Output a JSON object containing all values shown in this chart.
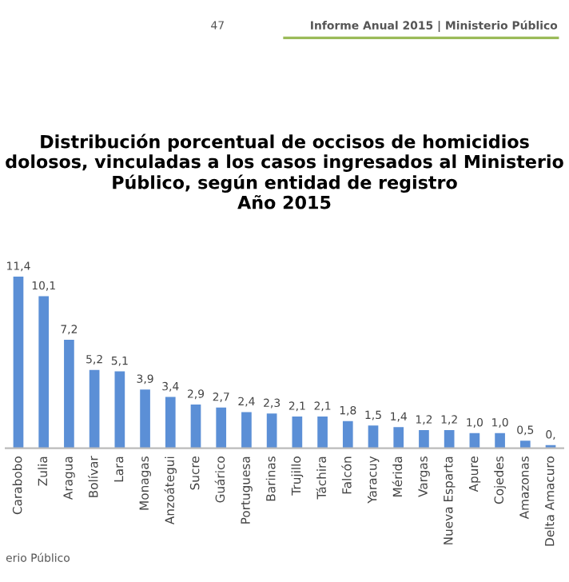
{
  "chart_data": {
    "type": "bar",
    "title": "Distribución porcentual de occisos de homicidios dolosos, vinculadas a los casos ingresados al Ministerio Público, según entidad de registro\nAño 2015",
    "categories": [
      "Carabobo",
      "Zulia",
      "Aragua",
      "Bolívar",
      "Lara",
      "Monagas",
      "Anzoátegui",
      "Sucre",
      "Guárico",
      "Portuguesa",
      "Barinas",
      "Trujillo",
      "Táchira",
      "Falcón",
      "Yaracuy",
      "Mérida",
      "Vargas",
      "Nueva Esparta",
      "Apure",
      "Cojedes",
      "Amazonas",
      "Delta Amacuro"
    ],
    "values": [
      11.4,
      10.1,
      7.2,
      5.2,
      5.1,
      3.9,
      3.4,
      2.9,
      2.7,
      2.4,
      2.3,
      2.1,
      2.1,
      1.8,
      1.5,
      1.4,
      1.2,
      1.2,
      1.0,
      1.0,
      0.5,
      0.2
    ],
    "value_labels": [
      "11,4",
      "10,1",
      "7,2",
      "5,2",
      "5,1",
      "3,9",
      "3,4",
      "2,9",
      "2,7",
      "2,4",
      "2,3",
      "2,1",
      "2,1",
      "1,8",
      "1,5",
      "1,4",
      "1,2",
      "1,2",
      "1,0",
      "1,0",
      "0,5",
      "0,"
    ],
    "color": "#5b8fd6",
    "annotations": [
      "47",
      "Informe Anual 2015 | Ministerio Público",
      "erio Público"
    ]
  }
}
